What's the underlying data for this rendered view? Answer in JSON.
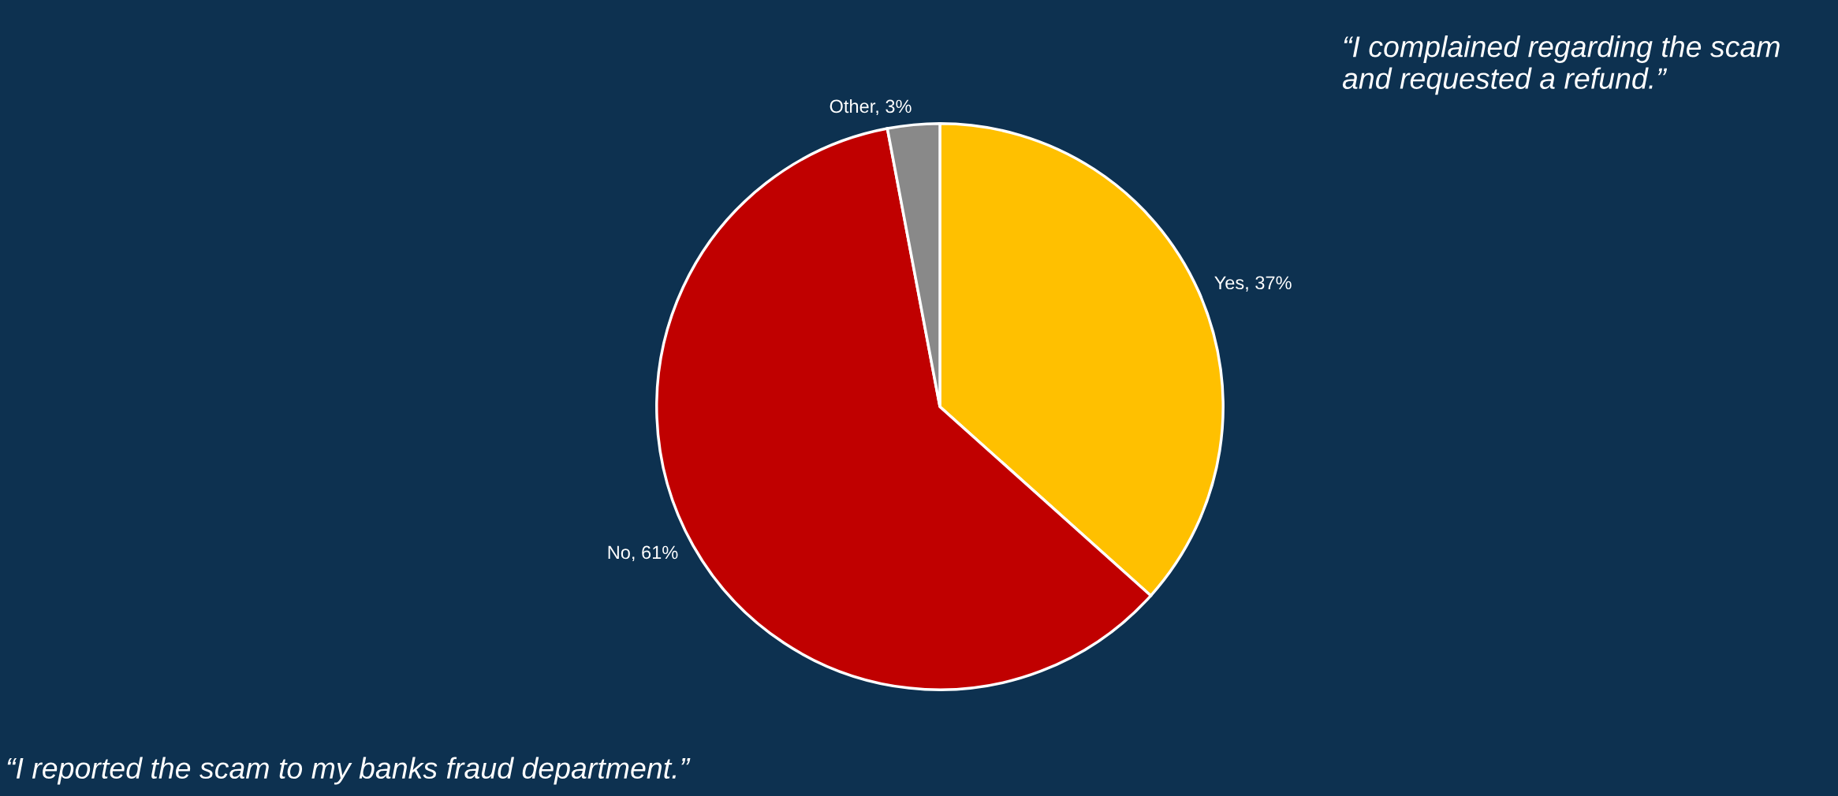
{
  "chart_data": {
    "type": "pie",
    "categories": [
      "Yes",
      "No",
      "Other"
    ],
    "values": [
      37,
      61,
      3
    ],
    "value_labels": [
      "37%",
      "61%",
      "3%"
    ],
    "colors": [
      "#ffc000",
      "#c00000",
      "#898989"
    ],
    "annotations": [
      "“I complained regarding the scam and requested a refund.”",
      "“I reported the scam to my banks fraud department.”"
    ],
    "legend": false
  }
}
